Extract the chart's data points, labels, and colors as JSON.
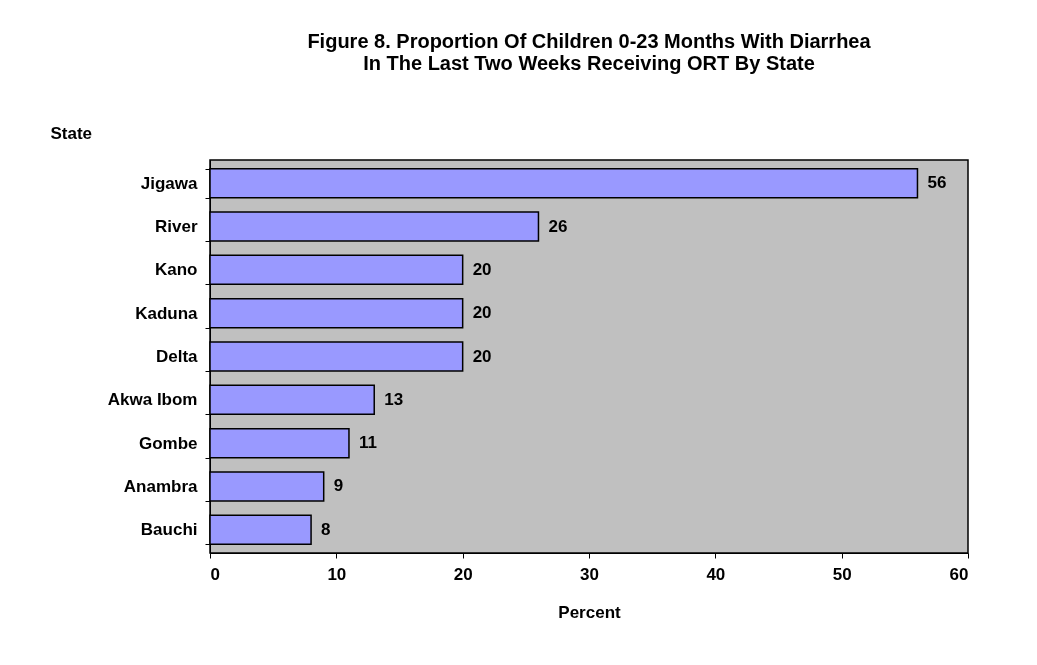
{
  "chart_data": {
    "type": "bar",
    "orientation": "horizontal",
    "title": [
      "Figure 8. Proportion Of Children 0-23 Months With Diarrhea",
      "In The Last Two Weeks Receiving ORT By State"
    ],
    "ylabel": "State",
    "xlabel": "Percent",
    "categories": [
      "Jigawa",
      "River",
      "Kano",
      "Kaduna",
      "Delta",
      "Akwa Ibom",
      "Gombe",
      "Anambra",
      "Bauchi"
    ],
    "values": [
      56,
      26,
      20,
      20,
      20,
      13,
      11,
      9,
      8
    ],
    "color": "#9999ff",
    "xlim": [
      0,
      60
    ],
    "xticks": [
      0,
      10,
      20,
      30,
      40,
      50,
      60
    ],
    "data_labels": true,
    "grid": false
  }
}
